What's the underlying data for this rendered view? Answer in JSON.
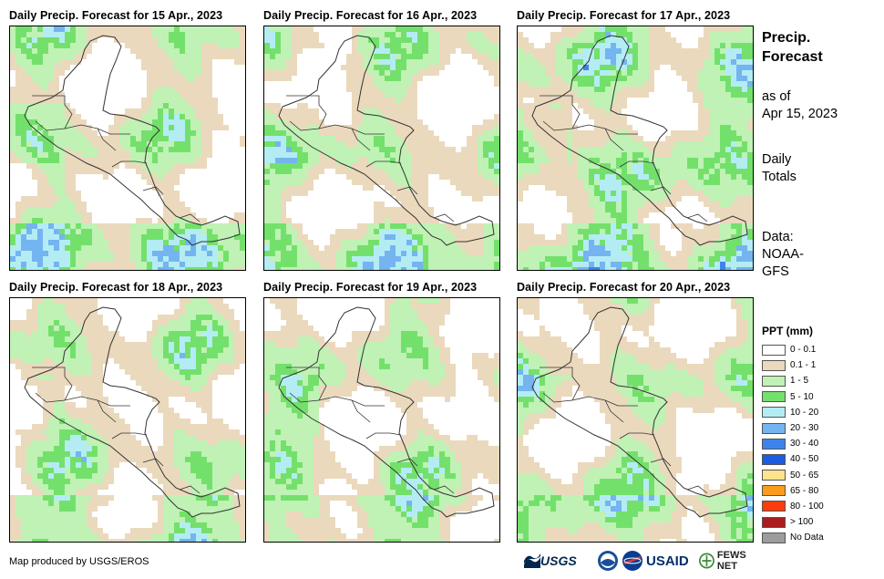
{
  "panels": [
    {
      "title": "Daily Precip. Forecast for 15 Apr., 2023"
    },
    {
      "title": "Daily Precip. Forecast for 16 Apr., 2023"
    },
    {
      "title": "Daily Precip. Forecast for 17 Apr., 2023"
    },
    {
      "title": "Daily Precip. Forecast for 18 Apr., 2023"
    },
    {
      "title": "Daily Precip. Forecast for 19 Apr., 2023"
    },
    {
      "title": "Daily Precip. Forecast for 20 Apr., 2023"
    }
  ],
  "side": {
    "title_line1": "Precip.",
    "title_line2": "Forecast",
    "asof_line1": "as of",
    "asof_line2": "Apr 15, 2023",
    "totals_line1": "Daily",
    "totals_line2": "Totals",
    "source_line1": "Data:",
    "source_line2": "NOAA-",
    "source_line3": "GFS"
  },
  "legend": {
    "title": "PPT (mm)",
    "classes": [
      {
        "label": "0 - 0.1",
        "color": "#ffffff"
      },
      {
        "label": "0.1 - 1",
        "color": "#ebd9bd"
      },
      {
        "label": "1 - 5",
        "color": "#bff2b4"
      },
      {
        "label": "5 - 10",
        "color": "#74e06c"
      },
      {
        "label": "10 - 20",
        "color": "#b4ecf4"
      },
      {
        "label": "20 - 30",
        "color": "#74b4f0"
      },
      {
        "label": "30 - 40",
        "color": "#3c84ec"
      },
      {
        "label": "40 - 50",
        "color": "#1c5ce0"
      },
      {
        "label": "50 - 65",
        "color": "#ffe48c"
      },
      {
        "label": "65 - 80",
        "color": "#fc9c1c"
      },
      {
        "label": "80 - 100",
        "color": "#fc3c0c"
      },
      {
        "label": "> 100",
        "color": "#ac1c1c"
      },
      {
        "label": "No Data",
        "color": "#9c9c9c"
      }
    ]
  },
  "credit": "Map produced by USGS/EROS",
  "logos": {
    "usgs": "USGS",
    "usaid": "USAID",
    "fews": "FEWS NET"
  }
}
